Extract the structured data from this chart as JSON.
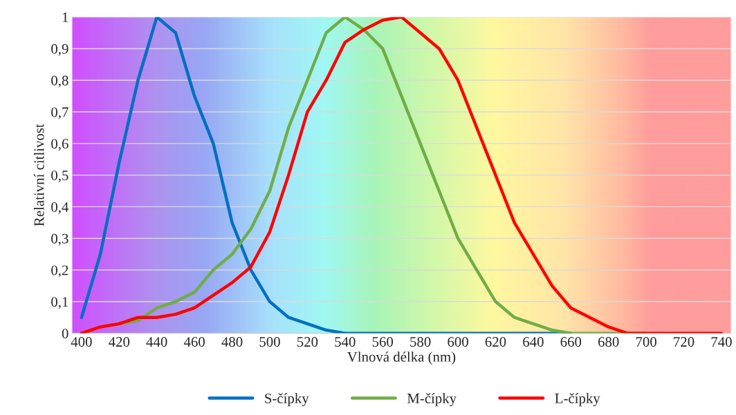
{
  "chart_data": {
    "type": "line",
    "xlabel": "Vlnová délka (nm)",
    "ylabel": "Relativní citlivost",
    "x": [
      400,
      410,
      420,
      430,
      440,
      450,
      460,
      470,
      480,
      490,
      500,
      510,
      520,
      530,
      540,
      550,
      560,
      570,
      580,
      590,
      600,
      610,
      620,
      630,
      640,
      650,
      660,
      670,
      680,
      690,
      700,
      710,
      720,
      730,
      740
    ],
    "series": [
      {
        "name": "S-čípky",
        "color": "#0070c0",
        "values": [
          0.05,
          0.25,
          0.54,
          0.8,
          1.0,
          0.95,
          0.75,
          0.6,
          0.35,
          0.2,
          0.1,
          0.05,
          0.03,
          0.01,
          0,
          0,
          0,
          0,
          0,
          0,
          0,
          0,
          0,
          0,
          0,
          0,
          0,
          null,
          null,
          null,
          null,
          null,
          null,
          null,
          null
        ]
      },
      {
        "name": "M-čípky",
        "color": "#70ad47",
        "values": [
          0,
          0.02,
          0.03,
          0.04,
          0.08,
          0.1,
          0.13,
          0.2,
          0.25,
          0.33,
          0.45,
          0.65,
          0.8,
          0.95,
          1.0,
          0.96,
          0.9,
          0.75,
          0.6,
          0.45,
          0.3,
          0.2,
          0.1,
          0.05,
          0.03,
          0.01,
          0,
          0,
          0,
          0,
          0,
          null,
          null,
          null,
          null
        ]
      },
      {
        "name": "L-čípky",
        "color": "#ff0000",
        "values": [
          0,
          0.02,
          0.03,
          0.05,
          0.05,
          0.06,
          0.08,
          0.12,
          0.16,
          0.21,
          0.32,
          0.5,
          0.7,
          0.8,
          0.92,
          0.96,
          0.99,
          1.0,
          0.95,
          0.9,
          0.8,
          0.65,
          0.5,
          0.35,
          0.25,
          0.15,
          0.08,
          0.05,
          0.02,
          0,
          0,
          0,
          0,
          0,
          0
        ]
      }
    ],
    "xlim": [
      395,
      745
    ],
    "xticks": [
      400,
      420,
      440,
      460,
      480,
      500,
      520,
      540,
      560,
      580,
      600,
      620,
      640,
      660,
      680,
      700,
      720,
      740
    ],
    "ylim": [
      0,
      1
    ],
    "yticks": [
      0,
      {
        "value": 0.1,
        "label": "0,1"
      },
      {
        "value": 0.2,
        "label": "0,2"
      },
      {
        "value": 0.3,
        "label": "0,3"
      },
      {
        "value": 0.4,
        "label": "0,4"
      },
      {
        "value": 0.5,
        "label": "0,5"
      },
      {
        "value": 0.6,
        "label": "0,6"
      },
      {
        "value": 0.7,
        "label": "0,7"
      },
      {
        "value": 0.8,
        "label": "0,8"
      },
      {
        "value": 0.9,
        "label": "0,9"
      },
      1
    ],
    "grid": "y",
    "legend": "bottom",
    "marker": "none",
    "line_style": "solid"
  }
}
